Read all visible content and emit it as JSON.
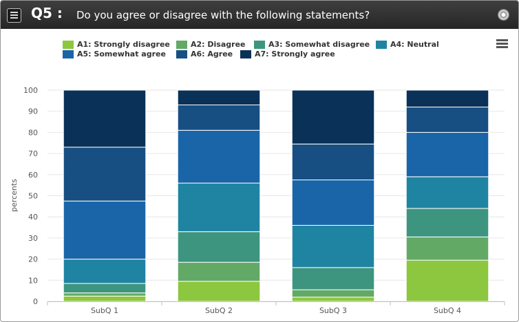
{
  "header": {
    "question_number": "Q5 :",
    "question_text": "Do you agree or disagree with the following statements?"
  },
  "chart_data": {
    "type": "bar",
    "stacked": true,
    "categories": [
      "SubQ 1",
      "SubQ 2",
      "SubQ 3",
      "SubQ 4"
    ],
    "ylabel": "percents",
    "ylim": [
      0,
      100
    ],
    "yticks": [
      0,
      10,
      20,
      30,
      40,
      50,
      60,
      70,
      80,
      90,
      100
    ],
    "legend_position": "top",
    "series": [
      {
        "name": "A1: Strongly disagree",
        "color": "#8dc63f",
        "values": [
          2.5,
          9.5,
          2,
          19.5
        ]
      },
      {
        "name": "A2: Disagree",
        "color": "#63a966",
        "values": [
          1.5,
          9,
          3.5,
          11
        ]
      },
      {
        "name": "A3: Somewhat disagree",
        "color": "#3d9580",
        "values": [
          4.5,
          14.5,
          10.5,
          13.5
        ]
      },
      {
        "name": "A4: Neutral",
        "color": "#1f84a2",
        "values": [
          11.5,
          23,
          20,
          15
        ]
      },
      {
        "name": "A5: Somewhat agree",
        "color": "#1a65a8",
        "values": [
          27.5,
          25,
          21.5,
          21
        ]
      },
      {
        "name": "A6: Agree",
        "color": "#174f82",
        "values": [
          25.5,
          12,
          17,
          12
        ]
      },
      {
        "name": "A7: Strongly agree",
        "color": "#0a3158",
        "values": [
          27,
          7,
          25.5,
          8
        ]
      }
    ]
  }
}
